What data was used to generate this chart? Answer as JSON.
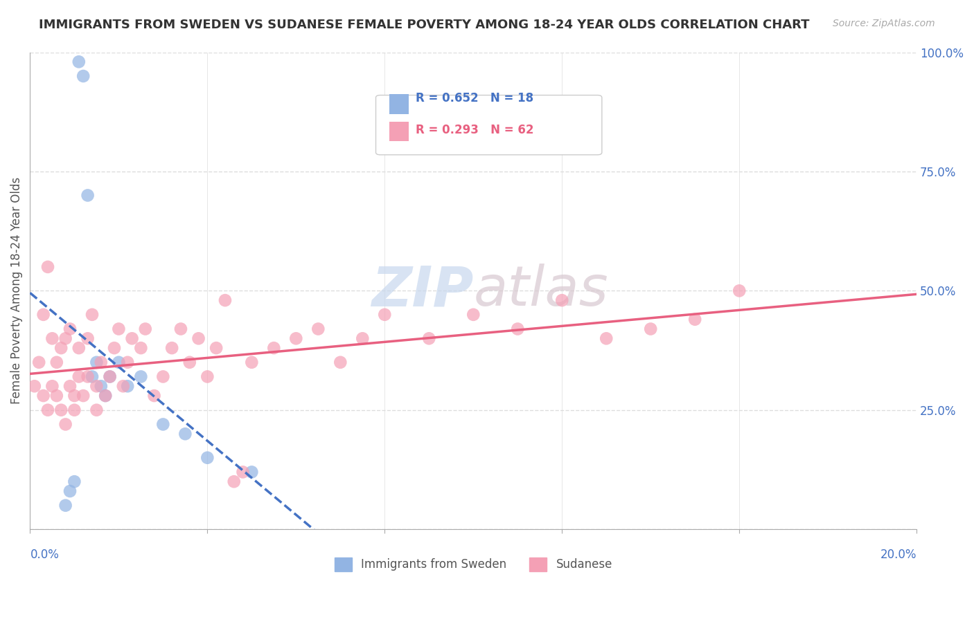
{
  "title": "IMMIGRANTS FROM SWEDEN VS SUDANESE FEMALE POVERTY AMONG 18-24 YEAR OLDS CORRELATION CHART",
  "source": "Source: ZipAtlas.com",
  "ylabel": "Female Poverty Among 18-24 Year Olds",
  "legend_label_1": "Immigrants from Sweden",
  "legend_label_2": "Sudanese",
  "watermark_1": "ZIP",
  "watermark_2": "atlas",
  "blue_color": "#92b4e3",
  "pink_color": "#f4a0b5",
  "blue_line_color": "#4472c4",
  "pink_line_color": "#e86080",
  "xlim": [
    0.0,
    0.2
  ],
  "ylim": [
    0.0,
    1.0
  ],
  "sweden_x": [
    0.008,
    0.009,
    0.01,
    0.011,
    0.012,
    0.013,
    0.014,
    0.015,
    0.016,
    0.017,
    0.018,
    0.02,
    0.022,
    0.025,
    0.03,
    0.035,
    0.04,
    0.05
  ],
  "sweden_y": [
    0.05,
    0.08,
    0.1,
    0.98,
    0.95,
    0.7,
    0.32,
    0.35,
    0.3,
    0.28,
    0.32,
    0.35,
    0.3,
    0.32,
    0.22,
    0.2,
    0.15,
    0.12
  ],
  "sudanese_x": [
    0.001,
    0.002,
    0.003,
    0.003,
    0.004,
    0.004,
    0.005,
    0.005,
    0.006,
    0.006,
    0.007,
    0.007,
    0.008,
    0.008,
    0.009,
    0.009,
    0.01,
    0.01,
    0.011,
    0.011,
    0.012,
    0.013,
    0.013,
    0.014,
    0.015,
    0.015,
    0.016,
    0.017,
    0.018,
    0.019,
    0.02,
    0.021,
    0.022,
    0.023,
    0.025,
    0.026,
    0.028,
    0.03,
    0.032,
    0.034,
    0.036,
    0.038,
    0.04,
    0.042,
    0.044,
    0.046,
    0.048,
    0.05,
    0.055,
    0.06,
    0.065,
    0.07,
    0.075,
    0.08,
    0.09,
    0.1,
    0.11,
    0.12,
    0.13,
    0.14,
    0.15,
    0.16
  ],
  "sudanese_y": [
    0.3,
    0.35,
    0.28,
    0.45,
    0.55,
    0.25,
    0.3,
    0.4,
    0.28,
    0.35,
    0.25,
    0.38,
    0.4,
    0.22,
    0.3,
    0.42,
    0.25,
    0.28,
    0.32,
    0.38,
    0.28,
    0.32,
    0.4,
    0.45,
    0.25,
    0.3,
    0.35,
    0.28,
    0.32,
    0.38,
    0.42,
    0.3,
    0.35,
    0.4,
    0.38,
    0.42,
    0.28,
    0.32,
    0.38,
    0.42,
    0.35,
    0.4,
    0.32,
    0.38,
    0.48,
    0.1,
    0.12,
    0.35,
    0.38,
    0.4,
    0.42,
    0.35,
    0.4,
    0.45,
    0.4,
    0.45,
    0.42,
    0.48,
    0.4,
    0.42,
    0.44,
    0.5
  ]
}
